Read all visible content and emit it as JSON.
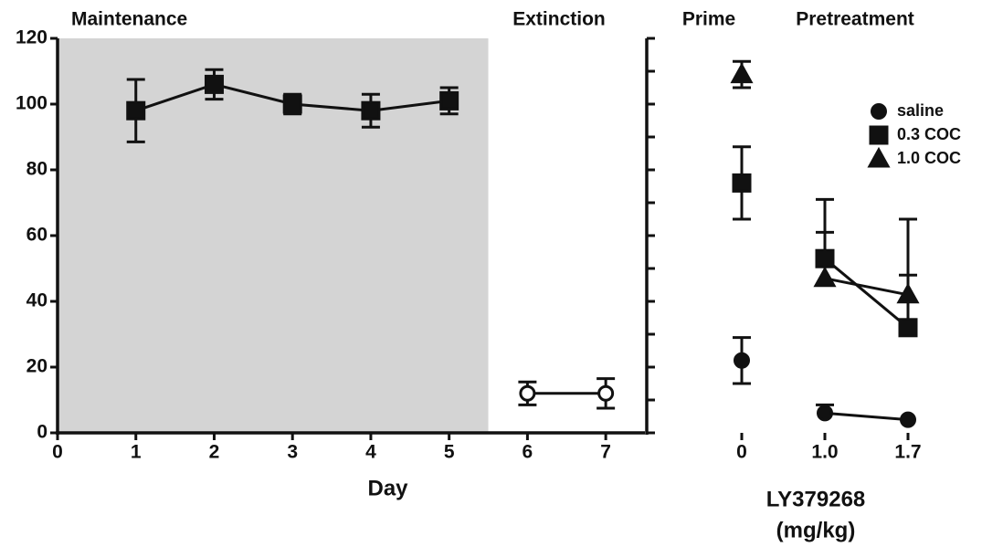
{
  "chart_data": [
    {
      "type": "line",
      "region_labels": [
        "Maintenance",
        "Extinction"
      ],
      "xlabel": "Day",
      "xlim": [
        0,
        7.5
      ],
      "xticks": [
        0,
        1,
        2,
        3,
        4,
        5,
        6,
        7
      ],
      "ylim": [
        0,
        120
      ],
      "yticks": [
        0,
        20,
        40,
        60,
        80,
        100,
        120
      ],
      "shaded_region": [
        0,
        5.5
      ],
      "shade_color": "#d4d4d4",
      "series": [
        {
          "marker": "square",
          "filled": true,
          "color": "#111111",
          "x": [
            1,
            2,
            3,
            4,
            5
          ],
          "values": [
            98,
            106,
            100,
            98,
            101
          ],
          "errors": [
            9.5,
            4.5,
            3,
            5,
            4
          ]
        },
        {
          "marker": "circle",
          "filled": false,
          "color": "#111111",
          "x": [
            6,
            7
          ],
          "values": [
            12,
            12
          ],
          "errors": [
            3.5,
            4.5
          ]
        }
      ]
    },
    {
      "type": "line",
      "region_labels": [
        "Prime",
        "Pretreatment"
      ],
      "xlabel": [
        "LY379268",
        "(mg/kg)"
      ],
      "categories": [
        "0",
        "1.0",
        "1.7"
      ],
      "ylim": [
        0,
        120
      ],
      "yticks": [
        0,
        10,
        20,
        30,
        40,
        50,
        60,
        70,
        80,
        90,
        100,
        110,
        120
      ],
      "ytick_labels": false,
      "connect_from": 1,
      "legend": "upper right",
      "series": [
        {
          "name": "saline",
          "marker": "circle",
          "filled": true,
          "color": "#111111",
          "values": [
            22,
            6,
            4
          ],
          "errors": [
            7,
            2.5,
            null
          ],
          "error_sides": [
            "both",
            "up",
            "up"
          ]
        },
        {
          "name": "0.3 COC",
          "marker": "square",
          "filled": true,
          "color": "#111111",
          "values": [
            76,
            53,
            32
          ],
          "errors": [
            11,
            18,
            16
          ],
          "error_sides": [
            "both",
            "up",
            "up"
          ]
        },
        {
          "name": "1.0 COC",
          "marker": "triangle",
          "filled": true,
          "color": "#111111",
          "values": [
            109,
            47,
            42
          ],
          "errors": [
            4,
            14,
            23
          ],
          "error_sides": [
            "both",
            "up",
            "up"
          ]
        }
      ]
    }
  ]
}
